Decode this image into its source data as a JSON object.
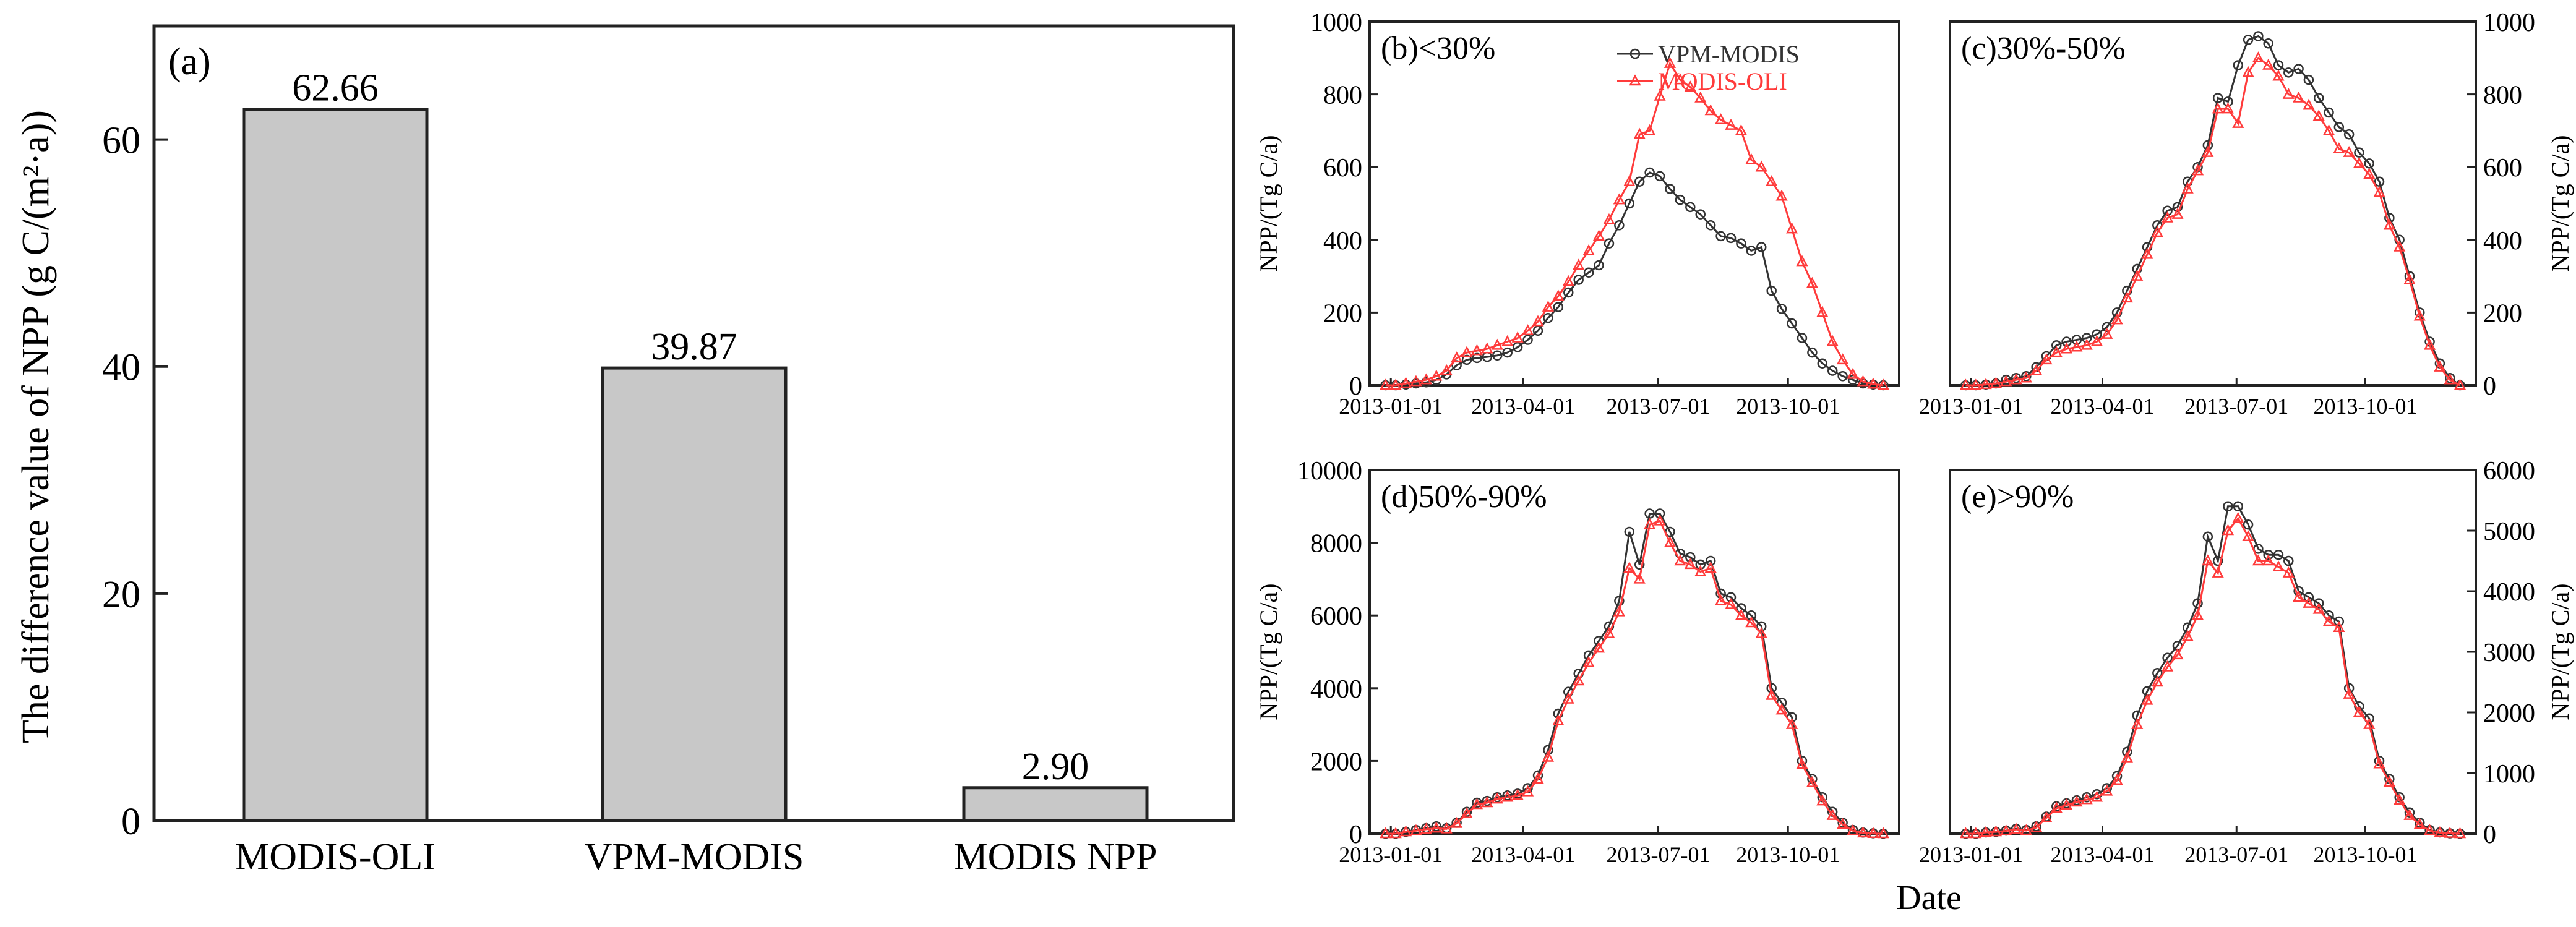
{
  "chart_data": [
    {
      "panel": "a",
      "type": "bar",
      "panel_label": "(a)",
      "ylabel": "The difference value of NPP (g C/(m²·a))",
      "categories": [
        "MODIS-OLI",
        "VPM-MODIS",
        "MODIS NPP"
      ],
      "values": [
        62.66,
        39.87,
        2.9
      ],
      "value_labels": [
        "62.66",
        "39.87",
        "2.90"
      ],
      "ylim": [
        0,
        70
      ],
      "yticks": [
        0,
        20,
        40,
        60
      ],
      "ytick_labels": [
        "0",
        "20",
        "40",
        "60"
      ],
      "bar_color": "#c8c8c8"
    },
    {
      "panel": "b",
      "type": "line",
      "panel_label": "(b)<30%",
      "ylabel": "NPP/(Tg C/a)",
      "ylim": [
        0,
        1000
      ],
      "yticks": [
        0,
        200,
        400,
        600,
        800,
        1000
      ],
      "ytick_labels": [
        "0",
        "200",
        "400",
        "600",
        "800",
        "1000"
      ],
      "xtick_labels": [
        "2013-01-01",
        "2013-04-01",
        "2013-07-01",
        "2013-10-01"
      ],
      "legend": [
        "VPM-MODIS",
        "MODIS-OLI"
      ],
      "series": [
        {
          "name": "VPM-MODIS",
          "values": [
            0,
            0,
            2,
            5,
            8,
            15,
            30,
            55,
            70,
            75,
            78,
            82,
            90,
            105,
            125,
            150,
            185,
            215,
            255,
            290,
            310,
            330,
            390,
            440,
            500,
            560,
            585,
            575,
            540,
            510,
            490,
            470,
            440,
            410,
            405,
            390,
            370,
            380,
            260,
            210,
            170,
            130,
            90,
            60,
            40,
            25,
            15,
            5,
            2,
            0
          ]
        },
        {
          "name": "MODIS-OLI",
          "values": [
            0,
            0,
            5,
            10,
            15,
            25,
            40,
            75,
            90,
            95,
            100,
            110,
            120,
            130,
            150,
            175,
            215,
            245,
            285,
            330,
            370,
            410,
            455,
            510,
            560,
            690,
            700,
            795,
            885,
            840,
            820,
            790,
            755,
            730,
            715,
            700,
            620,
            600,
            560,
            520,
            430,
            340,
            280,
            200,
            120,
            70,
            30,
            10,
            3,
            0
          ]
        }
      ]
    },
    {
      "panel": "c",
      "type": "line",
      "panel_label": "(c)30%-50%",
      "ylabel": "NPP/(Tg C/a)",
      "ylim": [
        0,
        1000
      ],
      "yticks": [
        0,
        200,
        400,
        600,
        800,
        1000
      ],
      "ytick_labels": [
        "0",
        "200",
        "400",
        "600",
        "800",
        "1000"
      ],
      "xtick_labels": [
        "2013-01-01",
        "2013-04-01",
        "2013-07-01",
        "2013-10-01"
      ],
      "series": [
        {
          "name": "VPM-MODIS",
          "values": [
            0,
            0,
            2,
            5,
            15,
            20,
            25,
            50,
            80,
            110,
            120,
            125,
            130,
            140,
            160,
            200,
            260,
            320,
            380,
            440,
            480,
            490,
            560,
            600,
            660,
            790,
            780,
            880,
            950,
            960,
            940,
            880,
            860,
            870,
            840,
            790,
            750,
            710,
            690,
            640,
            610,
            560,
            460,
            400,
            300,
            200,
            120,
            60,
            20,
            0
          ]
        },
        {
          "name": "MODIS-OLI",
          "values": [
            0,
            0,
            2,
            5,
            10,
            15,
            20,
            40,
            70,
            90,
            100,
            105,
            110,
            120,
            140,
            180,
            240,
            300,
            360,
            420,
            460,
            470,
            540,
            590,
            640,
            760,
            760,
            720,
            860,
            900,
            880,
            850,
            800,
            790,
            770,
            740,
            700,
            650,
            640,
            610,
            580,
            530,
            440,
            380,
            290,
            190,
            110,
            50,
            15,
            0
          ]
        }
      ]
    },
    {
      "panel": "d",
      "type": "line",
      "panel_label": "(d)50%-90%",
      "ylabel": "NPP/(Tg C/a)",
      "ylim": [
        0,
        10000
      ],
      "yticks": [
        0,
        2000,
        4000,
        6000,
        8000,
        10000
      ],
      "ytick_labels": [
        "0",
        "2000",
        "4000",
        "6000",
        "8000",
        "10000"
      ],
      "xtick_labels": [
        "2013-01-01",
        "2013-04-01",
        "2013-07-01",
        "2013-10-01"
      ],
      "series": [
        {
          "name": "VPM-MODIS",
          "values": [
            0,
            0,
            50,
            100,
            150,
            200,
            150,
            300,
            600,
            850,
            900,
            1000,
            1050,
            1100,
            1250,
            1600,
            2300,
            3300,
            3900,
            4400,
            4900,
            5300,
            5700,
            6400,
            8300,
            7400,
            8800,
            8800,
            8300,
            7700,
            7600,
            7400,
            7500,
            6600,
            6500,
            6200,
            6000,
            5700,
            4000,
            3600,
            3200,
            2000,
            1500,
            1000,
            600,
            300,
            100,
            30,
            10,
            0
          ]
        },
        {
          "name": "MODIS-OLI",
          "values": [
            0,
            0,
            50,
            80,
            120,
            150,
            130,
            280,
            550,
            800,
            850,
            950,
            1000,
            1050,
            1150,
            1500,
            2100,
            3100,
            3700,
            4200,
            4700,
            5100,
            5500,
            6100,
            7300,
            7000,
            8500,
            8600,
            8000,
            7500,
            7400,
            7200,
            7300,
            6400,
            6300,
            6000,
            5800,
            5500,
            3800,
            3400,
            3000,
            1900,
            1400,
            900,
            500,
            250,
            80,
            20,
            5,
            0
          ]
        }
      ]
    },
    {
      "panel": "e",
      "type": "line",
      "panel_label": "(e)>90%",
      "ylabel": "NPP/(Tg C/a)",
      "ylim": [
        0,
        6000
      ],
      "yticks": [
        0,
        1000,
        2000,
        3000,
        4000,
        5000,
        6000
      ],
      "ytick_labels": [
        "0",
        "1000",
        "2000",
        "3000",
        "4000",
        "5000",
        "6000"
      ],
      "xtick_labels": [
        "2013-01-01",
        "2013-04-01",
        "2013-07-01",
        "2013-10-01"
      ],
      "series": [
        {
          "name": "VPM-MODIS",
          "values": [
            0,
            0,
            20,
            30,
            50,
            80,
            60,
            120,
            280,
            450,
            500,
            550,
            600,
            650,
            750,
            950,
            1350,
            1950,
            2350,
            2650,
            2900,
            3100,
            3400,
            3800,
            4900,
            4500,
            5400,
            5400,
            5100,
            4700,
            4600,
            4600,
            4500,
            4000,
            3900,
            3800,
            3600,
            3500,
            2400,
            2100,
            1900,
            1200,
            900,
            600,
            350,
            180,
            60,
            20,
            5,
            0
          ]
        },
        {
          "name": "MODIS-OLI",
          "values": [
            0,
            0,
            20,
            30,
            45,
            70,
            50,
            100,
            260,
            420,
            470,
            520,
            560,
            600,
            700,
            880,
            1250,
            1800,
            2200,
            2500,
            2750,
            2950,
            3250,
            3600,
            4500,
            4300,
            5000,
            5200,
            4900,
            4500,
            4500,
            4400,
            4300,
            3900,
            3800,
            3700,
            3500,
            3400,
            2300,
            2000,
            1800,
            1150,
            850,
            550,
            300,
            150,
            50,
            15,
            5,
            0
          ]
        }
      ]
    }
  ],
  "shared_xlabel": "Date",
  "colors": {
    "vpm": "#333333",
    "oli": "#ff3b3b",
    "bar": "#c8c8c8"
  }
}
